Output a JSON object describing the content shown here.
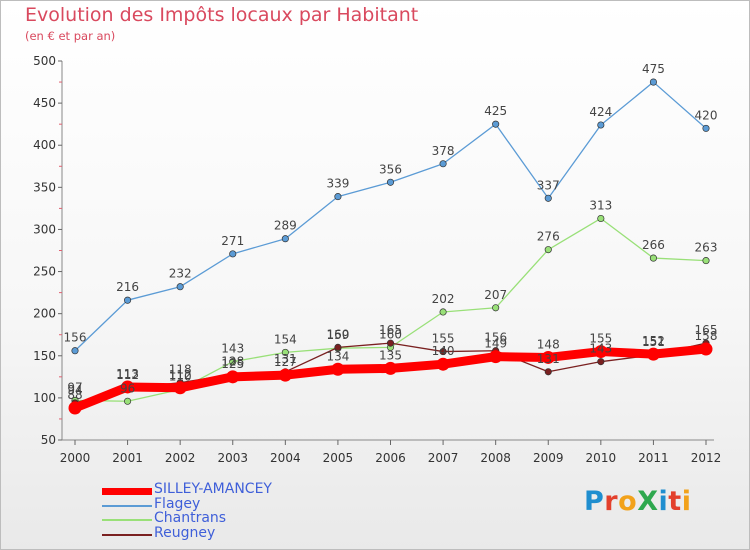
{
  "title": "Evolution des Impôts locaux par Habitant",
  "subtitle": "(en € et par an)",
  "logo": {
    "text": "ProXiti",
    "letter_colors": [
      "#1f8ecf",
      "#e3402c",
      "#f2a21b",
      "#2fa84f",
      "#1f8ecf",
      "#e3402c",
      "#f2a21b"
    ]
  },
  "chart_data": {
    "type": "line",
    "title": "Evolution des Impôts locaux par Habitant",
    "subtitle": "(en € et par an)",
    "x": [
      "2000",
      "2001",
      "2002",
      "2003",
      "2004",
      "2005",
      "2006",
      "2007",
      "2008",
      "2009",
      "2010",
      "2011",
      "2012"
    ],
    "y_ticks": [
      "50",
      "100",
      "150",
      "200",
      "250",
      "300",
      "350",
      "400",
      "450",
      "500"
    ],
    "ylim": [
      50,
      500
    ],
    "grid": false,
    "series": [
      {
        "name": "SILLEY-AMANCEY",
        "color": "#ff0000",
        "values": [
          88,
          113,
          112,
          125,
          127,
          134,
          135,
          140,
          149,
          148,
          155,
          152,
          158
        ],
        "labels": [
          "88",
          "113",
          "112",
          "125",
          "127",
          "134",
          "135",
          "140",
          "149",
          "148",
          "155",
          "152",
          "158"
        ]
      },
      {
        "name": "Flagey",
        "color": "#5b9bd5",
        "values": [
          156,
          216,
          232,
          271,
          289,
          339,
          356,
          378,
          425,
          337,
          424,
          475,
          420
        ],
        "labels": [
          "156",
          "216",
          "232",
          "271",
          "289",
          "339",
          "356",
          "378",
          "425",
          "337",
          "424",
          "475",
          "420"
        ]
      },
      {
        "name": "Chantrans",
        "color": "#99e078",
        "values": [
          97,
          96,
          110,
          143,
          154,
          159,
          160,
          202,
          207,
          276,
          313,
          266,
          263
        ],
        "labels": [
          "97",
          "96",
          "110",
          "143",
          "154",
          "159",
          "160",
          "202",
          "207",
          "276",
          "313",
          "266",
          "263"
        ]
      },
      {
        "name": "Reugney",
        "color": "#7a2020",
        "values": [
          94,
          112,
          118,
          128,
          131,
          160,
          165,
          155,
          156,
          131,
          143,
          151,
          165
        ],
        "labels": [
          "94",
          "112",
          "118",
          "128",
          "131",
          "160",
          "165",
          "155",
          "156",
          "131",
          "143",
          "151",
          "165"
        ]
      }
    ]
  }
}
